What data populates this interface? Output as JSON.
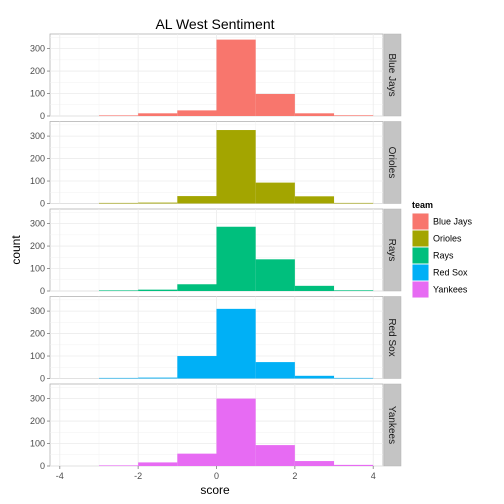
{
  "chart_data": {
    "type": "bar",
    "title": "AL West Sentiment",
    "xlabel": "score",
    "ylabel": "count",
    "xlim": [
      -4.25,
      4.25
    ],
    "ylim": [
      0,
      365
    ],
    "x_ticks": [
      -4,
      -2,
      0,
      2,
      4
    ],
    "y_ticks": [
      0,
      100,
      200,
      300
    ],
    "grid": true,
    "bin_edges": [
      -3,
      -2,
      -1,
      0,
      1,
      2,
      3,
      4
    ],
    "legend": {
      "title": "team",
      "position": "right",
      "items": [
        {
          "label": "Blue Jays",
          "color": "#F8766D"
        },
        {
          "label": "Orioles",
          "color": "#A3A500"
        },
        {
          "label": "Rays",
          "color": "#00BF7D"
        },
        {
          "label": "Red Sox",
          "color": "#00B0F6"
        },
        {
          "label": "Yankees",
          "color": "#E76BF3"
        }
      ]
    },
    "series": [
      {
        "name": "Blue Jays",
        "values": [
          0,
          12,
          25,
          340,
          98,
          12,
          3
        ]
      },
      {
        "name": "Orioles",
        "values": [
          0,
          4,
          33,
          327,
          93,
          32,
          1
        ]
      },
      {
        "name": "Rays",
        "values": [
          0,
          6,
          30,
          286,
          141,
          23,
          3
        ]
      },
      {
        "name": "Red Sox",
        "values": [
          0,
          4,
          100,
          310,
          73,
          12,
          1
        ]
      },
      {
        "name": "Yankees",
        "values": [
          2,
          16,
          55,
          300,
          93,
          22,
          5
        ]
      }
    ]
  }
}
